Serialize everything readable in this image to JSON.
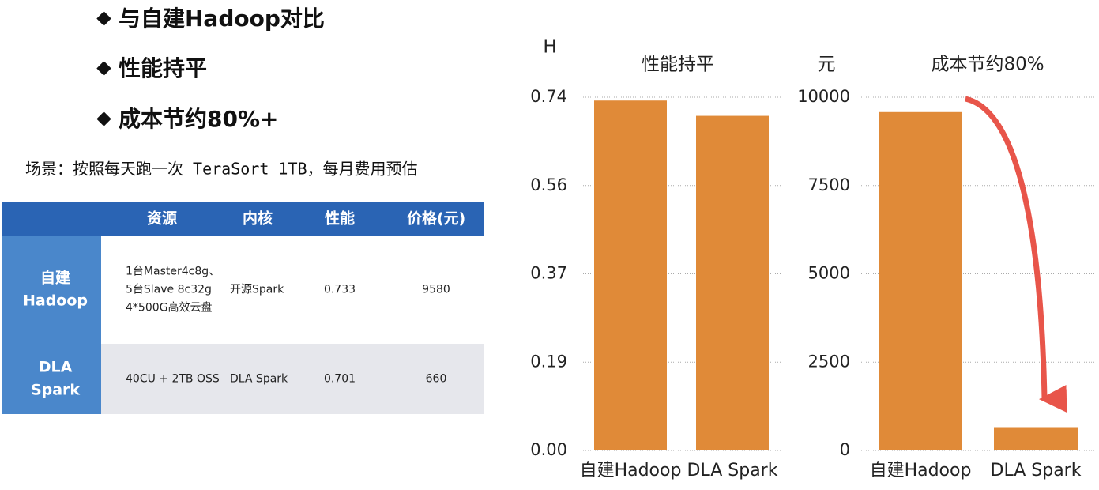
{
  "bullets": [
    "与自建Hadoop对比",
    "性能持平",
    "成本节约80%+"
  ],
  "scenario": "场景：按照每天跑一次 TeraSort 1TB，每月费用预估",
  "table": {
    "header": [
      "资源",
      "内核",
      "性能",
      "价格(元)"
    ],
    "rows": [
      {
        "label": [
          "自建",
          "Hadoop"
        ],
        "resource": [
          "1台Master4c8g、",
          "5台Slave 8c32g",
          "4*500G高效云盘"
        ],
        "kernel": "开源Spark",
        "performance": 0.733,
        "price": 9580
      },
      {
        "label": [
          "DLA",
          "Spark"
        ],
        "resource": [
          "40CU + 2TB OSS"
        ],
        "kernel": "DLA Spark",
        "performance": 0.701,
        "price": 660
      }
    ]
  },
  "chart_data": [
    {
      "type": "bar",
      "title": "性能持平",
      "y_label": "H",
      "categories": [
        "自建Hadoop",
        "DLA Spark"
      ],
      "values": [
        0.733,
        0.701
      ],
      "color": "#e08a38",
      "ylim": [
        0,
        0.74
      ],
      "yticks": [
        {
          "value": 0,
          "label": "0.00"
        },
        {
          "value": 0.185,
          "label": "0.19"
        },
        0.37,
        {
          "value": 0.555,
          "label": "0.56"
        },
        0.74
      ],
      "grid": true
    },
    {
      "type": "bar",
      "title": "成本节约80%",
      "y_label": "元",
      "categories": [
        "自建Hadoop",
        "DLA Spark"
      ],
      "values": [
        9580,
        660
      ],
      "color": "#e08a38",
      "ylim": [
        0,
        10000
      ],
      "yticks": [
        0,
        2500,
        5000,
        7500,
        10000
      ],
      "grid": true
    }
  ]
}
